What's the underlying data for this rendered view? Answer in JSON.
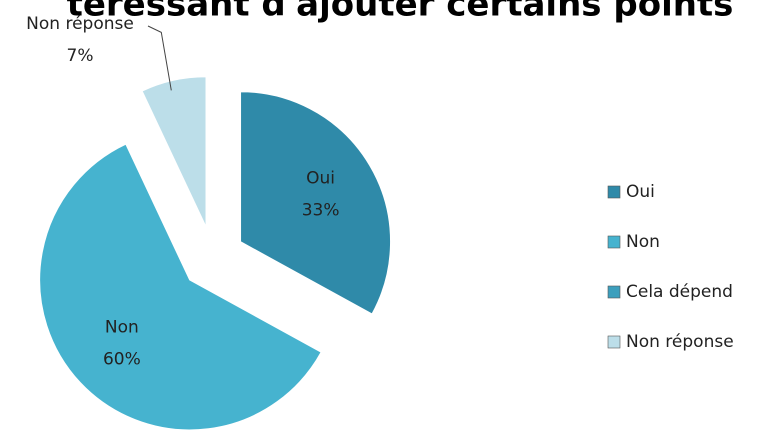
{
  "chart_data": {
    "type": "pie",
    "title": "téressant d'ajouter certains points",
    "categories": [
      "Oui",
      "Non",
      "Cela dépend",
      "Non réponse"
    ],
    "values": [
      33,
      60,
      0,
      7
    ],
    "value_labels": [
      "33%",
      "60%",
      null,
      "7%"
    ],
    "colors": [
      "#2f8aa9",
      "#46b3cf",
      "#3c9fbd",
      "#bcdee9"
    ],
    "legend": "right"
  }
}
